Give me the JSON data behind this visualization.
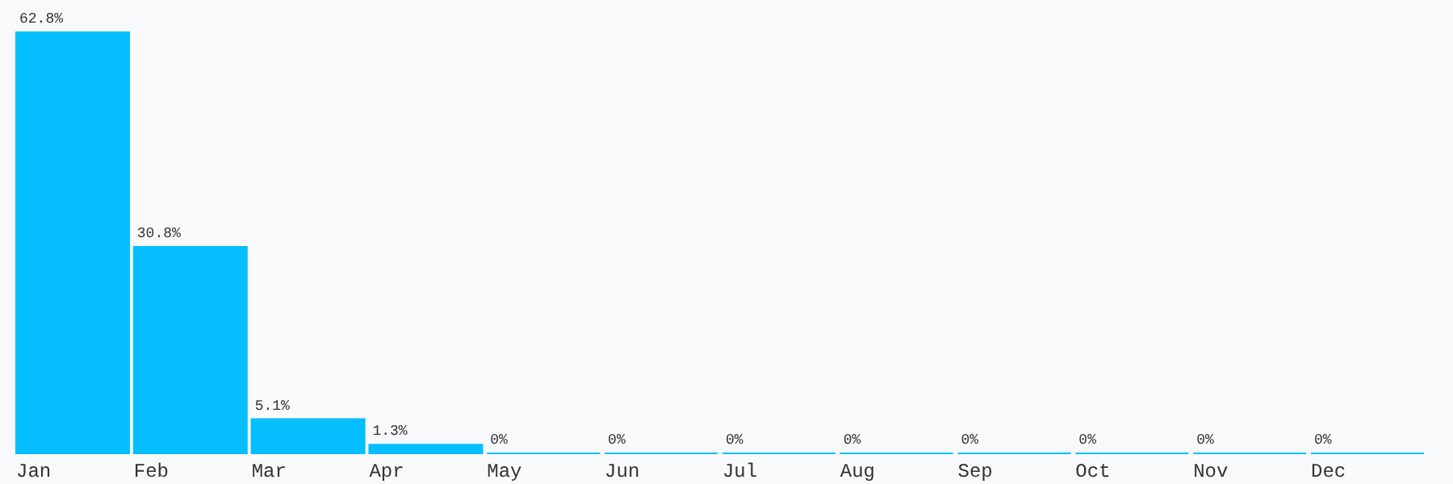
{
  "chart_data": {
    "type": "bar",
    "categories": [
      "Jan",
      "Feb",
      "Mar",
      "Apr",
      "May",
      "Jun",
      "Jul",
      "Aug",
      "Sep",
      "Oct",
      "Nov",
      "Dec"
    ],
    "values": [
      62.8,
      30.8,
      5.1,
      1.3,
      0,
      0,
      0,
      0,
      0,
      0,
      0,
      0
    ],
    "value_labels": [
      "62.8%",
      "30.8%",
      "5.1%",
      "1.3%",
      "0%",
      "0%",
      "0%",
      "0%",
      "0%",
      "0%",
      "0%",
      "0%"
    ],
    "color": "#04befe"
  }
}
